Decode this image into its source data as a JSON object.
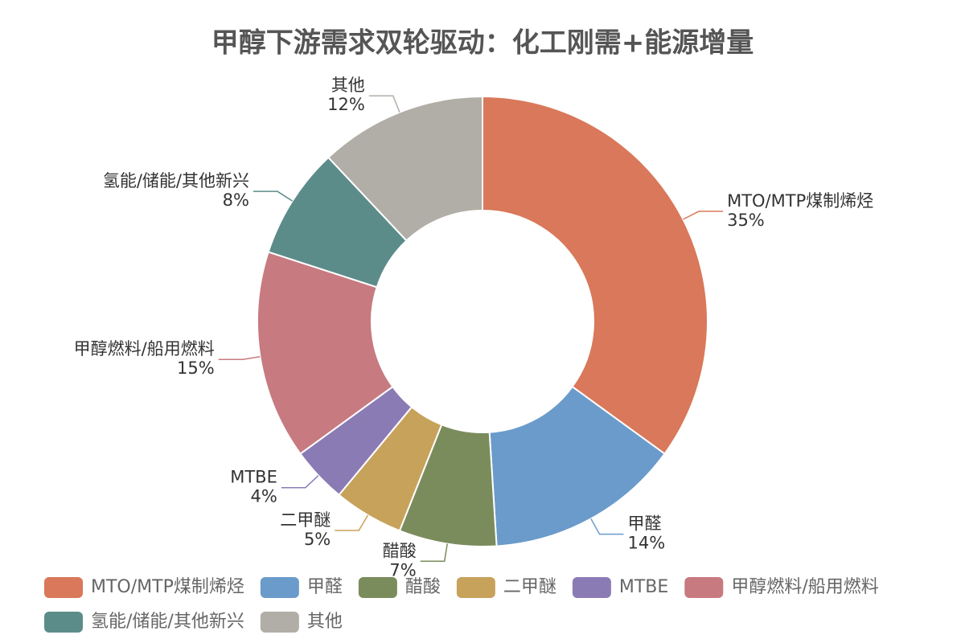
{
  "chart_data": {
    "type": "pie",
    "title": "甲醇下游需求双轮驱动：化工刚需+能源增量",
    "categories": [
      "MTO/MTP煤制烯烃",
      "甲醛",
      "醋酸",
      "二甲醚",
      "MTBE",
      "甲醇燃料/船用燃料",
      "氢能/储能/其他新兴",
      "其他"
    ],
    "values": [
      35,
      14,
      7,
      5,
      4,
      15,
      8,
      12
    ],
    "value_labels": [
      "35%",
      "14%",
      "7%",
      "5%",
      "4%",
      "15%",
      "8%",
      "12%"
    ],
    "colors": [
      "#d9785a",
      "#6b9bcb",
      "#7a8c5c",
      "#c7a25b",
      "#8b7bb5",
      "#c77a80",
      "#5c8c8a",
      "#b0aea6"
    ],
    "legend": "bottom"
  }
}
